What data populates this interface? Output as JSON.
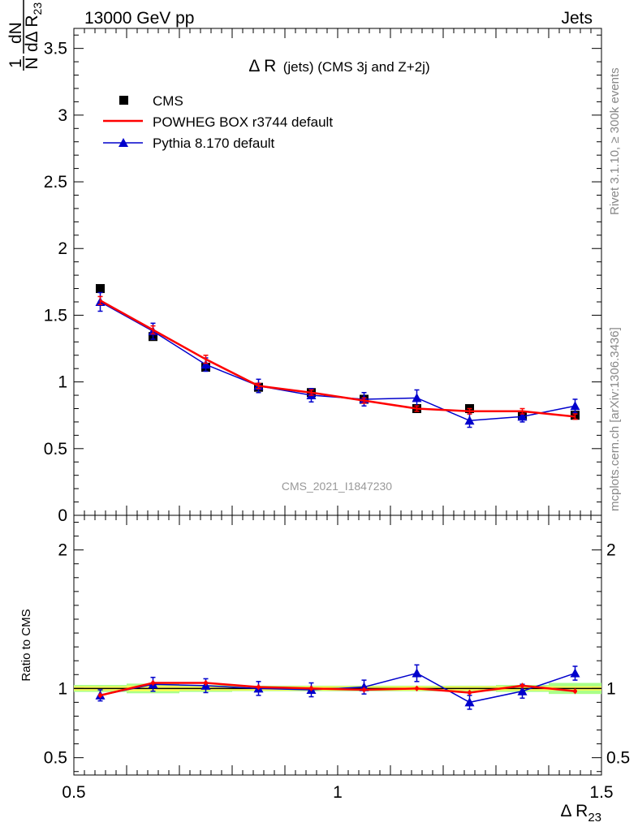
{
  "header": {
    "left": "13000 GeV pp",
    "right": "Jets"
  },
  "side_labels": {
    "rivet": "Rivet 3.1.10, ≥ 300k events",
    "mcplots": "mcplots.cern.ch [arXiv:1306.3436]"
  },
  "colors": {
    "data": "#000000",
    "powheg": "#ff0000",
    "pythia": "#0000cc",
    "band_inner": "#ffff55",
    "band_outer": "#aaff88"
  },
  "chart_data": [
    {
      "type": "scatter",
      "panel": "main",
      "title": "Δ R (jets) (CMS 3j and Z+2j)",
      "title_main": "Δ R",
      "title_sub": "(jets) (CMS 3j and Z+2j)",
      "ylabel": "1/N dN/dΔ R23",
      "ylabel_parts": {
        "one": "1",
        "N": "N",
        "dN": "dN",
        "dDR": "dΔ R",
        "sub": "23"
      },
      "watermark": "CMS_2021_I1847230",
      "xlim": [
        0.5,
        1.5
      ],
      "ylim": [
        0,
        3.65
      ],
      "yticks": [
        0,
        0.5,
        1,
        1.5,
        2,
        2.5,
        3,
        3.5
      ],
      "ytick_labels": [
        "0",
        "0.5",
        "1",
        "1.5",
        "2",
        "2.5",
        "3",
        "3.5"
      ],
      "legend_position": "top-left",
      "x": [
        0.55,
        0.65,
        0.75,
        0.85,
        0.95,
        1.05,
        1.15,
        1.25,
        1.35,
        1.45
      ],
      "series": [
        {
          "name": "CMS",
          "style": "square-markers",
          "values": [
            1.7,
            1.34,
            1.11,
            0.96,
            0.92,
            0.87,
            0.8,
            0.8,
            0.75,
            0.75
          ],
          "errors": [
            0.02,
            0.02,
            0.02,
            0.02,
            0.02,
            0.02,
            0.02,
            0.02,
            0.02,
            0.02
          ]
        },
        {
          "name": "POWHEG BOX r3744 default",
          "style": "line",
          "values": [
            1.61,
            1.39,
            1.17,
            0.97,
            0.92,
            0.86,
            0.8,
            0.78,
            0.78,
            0.74
          ],
          "errors": [
            0.03,
            0.03,
            0.03,
            0.02,
            0.02,
            0.02,
            0.02,
            0.02,
            0.02,
            0.02
          ]
        },
        {
          "name": "Pythia 8.170 default",
          "style": "triangle-line",
          "values": [
            1.6,
            1.38,
            1.13,
            0.97,
            0.9,
            0.87,
            0.88,
            0.71,
            0.74,
            0.82
          ],
          "errors": [
            0.07,
            0.06,
            0.05,
            0.05,
            0.05,
            0.05,
            0.06,
            0.05,
            0.04,
            0.05
          ]
        }
      ]
    },
    {
      "type": "scatter",
      "panel": "ratio",
      "ylabel": "Ratio to CMS",
      "xlabel": "Δ R23",
      "xlabel_parts": {
        "main": "Δ R",
        "sub": "23"
      },
      "xlim": [
        0.5,
        1.5
      ],
      "ylim": [
        0.375,
        2.25
      ],
      "xticks": [
        0.5,
        1,
        1.5
      ],
      "xtick_labels": [
        "0.5",
        "1",
        "1.5"
      ],
      "yticks": [
        0.5,
        1,
        2
      ],
      "ytick_labels": [
        "0.5",
        "1",
        "2"
      ],
      "x": [
        0.55,
        0.65,
        0.75,
        0.85,
        0.95,
        1.05,
        1.15,
        1.25,
        1.35,
        1.45
      ],
      "band": {
        "inner": [
          0.015,
          0.02,
          0.015,
          0.015,
          0.015,
          0.015,
          0.015,
          0.015,
          0.015,
          0.015
        ],
        "outer": [
          0.025,
          0.035,
          0.025,
          0.02,
          0.02,
          0.02,
          0.02,
          0.02,
          0.025,
          0.04
        ]
      },
      "series": [
        {
          "name": "POWHEG BOX r3744 default",
          "values": [
            0.95,
            1.04,
            1.04,
            1.01,
            1.0,
            0.99,
            1.0,
            0.97,
            1.02,
            0.98
          ],
          "errors": [
            0.02,
            0.02,
            0.02,
            0.02,
            0.02,
            0.02,
            0.02,
            0.02,
            0.02,
            0.02
          ]
        },
        {
          "name": "Pythia 8.170 default",
          "values": [
            0.95,
            1.03,
            1.02,
            1.0,
            0.99,
            1.01,
            1.11,
            0.9,
            0.98,
            1.11
          ],
          "errors": [
            0.04,
            0.05,
            0.05,
            0.05,
            0.05,
            0.05,
            0.06,
            0.05,
            0.05,
            0.05
          ]
        }
      ]
    }
  ]
}
